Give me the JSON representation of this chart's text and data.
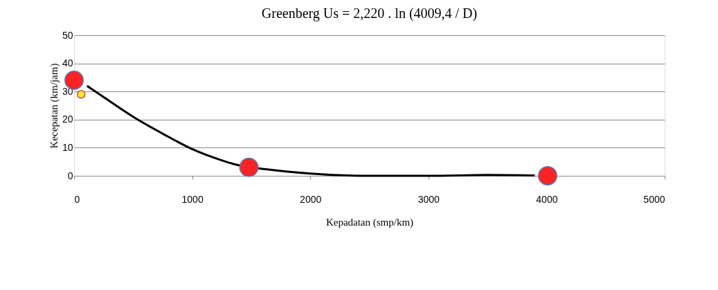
{
  "chart_data": {
    "type": "scatter",
    "title": "Greenberg Us = 2,220 . ln (4009,4 / D)",
    "xlabel": "Kepadatan (smp/km)",
    "ylabel": "Kecepatan (km/jam)",
    "xlim": [
      0,
      5000
    ],
    "xticks": [
      0,
      {
        "value": 1000,
        "label": "1000"
      },
      {
        "value": 2000,
        "label": "2000"
      },
      {
        "value": 3000,
        "label": "3000"
      },
      {
        "value": 4000,
        "label": "4000"
      },
      {
        "value": 5000,
        "label": "5000"
      }
    ],
    "ylim": [
      0,
      50
    ],
    "yticks": [
      0,
      10,
      20,
      30,
      40,
      50
    ],
    "grid": "y",
    "legend": false,
    "series": [
      {
        "type": "line",
        "color": "#000000",
        "marker": "none",
        "x": [
          110,
          250,
          500,
          750,
          1000,
          1250,
          1350,
          1650,
          2000,
          2500,
          3000,
          3500,
          3900
        ],
        "values": [
          32,
          28,
          21,
          15,
          9.5,
          5.5,
          4.2,
          2.2,
          0.8,
          0,
          0,
          0.3,
          0.1
        ]
      },
      {
        "color": "#ffee22",
        "marker": "circle",
        "x": [
          60
        ],
        "values": [
          29
        ]
      },
      {
        "color": "#ff2222",
        "marker": "circle",
        "x": [
          0,
          1480,
          4009
        ],
        "values": [
          34,
          3,
          0
        ]
      }
    ]
  }
}
